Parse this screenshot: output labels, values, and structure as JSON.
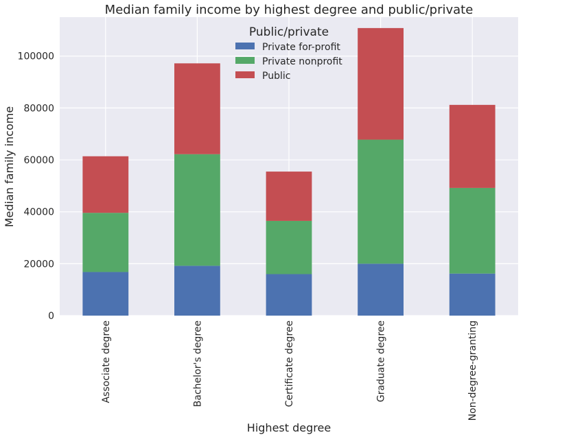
{
  "chart_data": {
    "type": "bar",
    "stacked": true,
    "title": "Median family income by highest degree and public/private",
    "xlabel": "Highest degree",
    "ylabel": "Median family income",
    "categories": [
      "Associate degree",
      "Bachelor's degree",
      "Certificate degree",
      "Graduate degree",
      "Non-degree-granting"
    ],
    "ylim": [
      0,
      115000
    ],
    "yticks": [
      0,
      20000,
      40000,
      60000,
      80000,
      100000
    ],
    "grid": true,
    "legend": {
      "title": "Public/private",
      "placement": "top-center"
    },
    "series": [
      {
        "name": "Private for-profit",
        "color": "#4c72b0",
        "values": [
          16800,
          19200,
          16000,
          20000,
          16200
        ]
      },
      {
        "name": "Private nonprofit",
        "color": "#55a868",
        "values": [
          22800,
          43000,
          20500,
          47800,
          33000
        ]
      },
      {
        "name": "Public",
        "color": "#c44e52",
        "values": [
          21800,
          35000,
          19000,
          43000,
          32000
        ]
      }
    ]
  }
}
